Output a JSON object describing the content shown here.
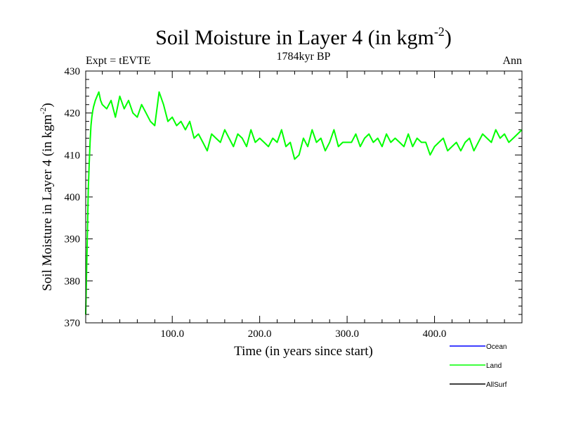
{
  "chart_data": {
    "type": "line",
    "title": "Soil Moisture in Layer 4 (in kgm",
    "title_sup": "-2",
    "title_close": ")",
    "subtitle_left": "Expt = tEVTE",
    "subtitle_center": "1784kyr BP",
    "subtitle_right": "Ann",
    "xlabel": "Time (in years since start)",
    "ylabel": "Soil Moisture in Layer 4 (in kgm",
    "ylabel_sup": "-2",
    "ylabel_close": ")",
    "xlim": [
      1,
      500
    ],
    "ylim": [
      370,
      430
    ],
    "x_ticks": [
      100,
      200,
      300,
      400
    ],
    "x_tick_labels": [
      "100.0",
      "200.0",
      "300.0",
      "400.0"
    ],
    "y_ticks": [
      370,
      380,
      390,
      400,
      410,
      420,
      430
    ],
    "y_tick_labels": [
      "370",
      "380",
      "390",
      "400",
      "410",
      "420",
      "430"
    ],
    "x_minor_step": 20,
    "y_minor_step": 2,
    "legend": [
      {
        "name": "Ocean",
        "color": "#0000ff"
      },
      {
        "name": "Land",
        "color": "#00ff00"
      },
      {
        "name": "AllSurf",
        "color": "#000000"
      }
    ],
    "series": [
      {
        "name": "Land",
        "color": "#00ff00",
        "x": [
          1,
          2,
          3,
          4,
          5,
          6,
          7,
          8,
          9,
          10,
          12,
          14,
          16,
          18,
          20,
          25,
          30,
          35,
          40,
          45,
          50,
          55,
          60,
          65,
          70,
          75,
          80,
          85,
          90,
          95,
          100,
          105,
          110,
          115,
          120,
          125,
          130,
          135,
          140,
          145,
          150,
          155,
          160,
          165,
          170,
          175,
          180,
          185,
          190,
          195,
          200,
          205,
          210,
          215,
          220,
          225,
          230,
          235,
          240,
          245,
          250,
          255,
          260,
          265,
          270,
          275,
          280,
          285,
          290,
          295,
          300,
          305,
          310,
          315,
          320,
          325,
          330,
          335,
          340,
          345,
          350,
          355,
          360,
          365,
          370,
          375,
          380,
          385,
          390,
          395,
          400,
          405,
          410,
          415,
          420,
          425,
          430,
          435,
          440,
          445,
          450,
          455,
          460,
          465,
          470,
          475,
          480,
          485,
          490,
          495,
          500
        ],
        "y": [
          372,
          382,
          392,
          402,
          408,
          413,
          417,
          419,
          420.5,
          421.5,
          423,
          424,
          425,
          423,
          422,
          421,
          423,
          419,
          424,
          421,
          423,
          420,
          419,
          422,
          420,
          418,
          417,
          425,
          422,
          418,
          419,
          417,
          418,
          416,
          418,
          414,
          415,
          413,
          411,
          415,
          414,
          413,
          416,
          414,
          412,
          415,
          414,
          412,
          416,
          413,
          414,
          413,
          412,
          414,
          413,
          416,
          412,
          413,
          409,
          410,
          414,
          412,
          416,
          413,
          414,
          411,
          413,
          416,
          412,
          413,
          413,
          413,
          415,
          412,
          414,
          415,
          413,
          414,
          412,
          415,
          413,
          414,
          413,
          412,
          415,
          412,
          414,
          413,
          413,
          410,
          412,
          413,
          414,
          411,
          412,
          413,
          411,
          413,
          414,
          411,
          413,
          415,
          414,
          413,
          416,
          414,
          415,
          413,
          414,
          415,
          416
        ]
      }
    ]
  }
}
